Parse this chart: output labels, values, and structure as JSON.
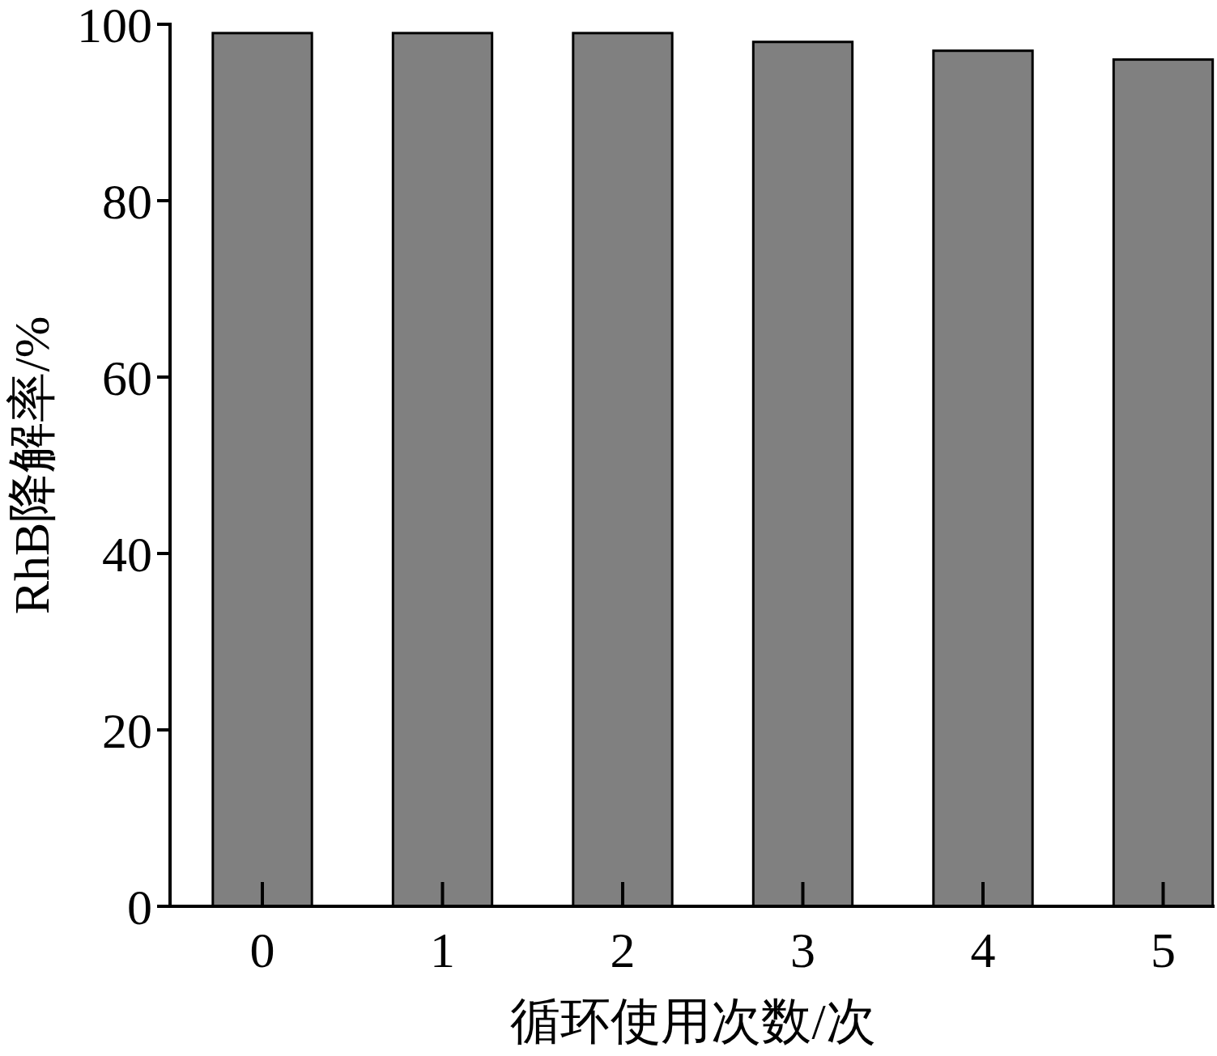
{
  "chart_data": {
    "type": "bar",
    "categories": [
      "0",
      "1",
      "2",
      "3",
      "4",
      "5"
    ],
    "values": [
      99,
      99,
      99,
      98,
      97,
      96
    ],
    "color": "#808080",
    "xlabel": "循环使用次数/次",
    "ylabel": "RhB降解率/%",
    "ylim": [
      0,
      100
    ],
    "yticks": [
      0,
      20,
      40,
      60,
      80,
      100
    ]
  }
}
